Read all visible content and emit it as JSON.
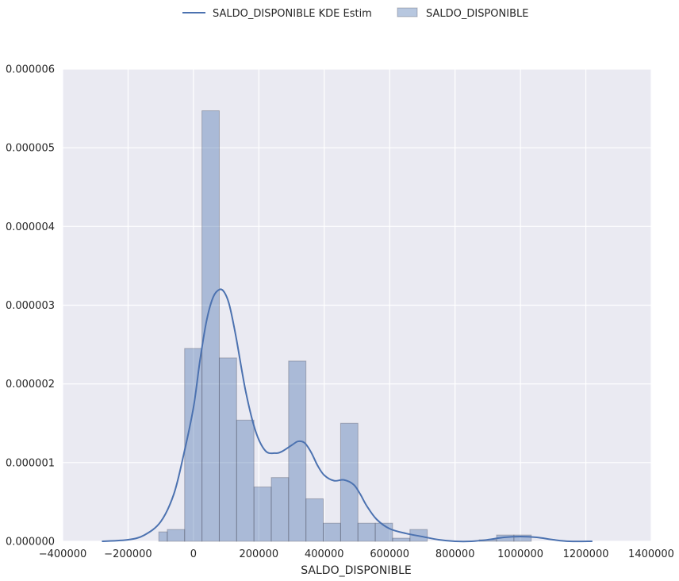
{
  "chart_data": {
    "type": "bar",
    "title": "",
    "xlabel": "SALDO_DISPONIBLE",
    "ylabel": "",
    "xlim": [
      -400000,
      1400000
    ],
    "ylim": [
      0,
      6e-06
    ],
    "grid": true,
    "legend_position": "top-center",
    "x_ticks": [
      "−400000",
      "−200000",
      "0",
      "200000",
      "400000",
      "600000",
      "800000",
      "1000000",
      "1200000",
      "1400000"
    ],
    "x_tick_values": [
      -400000,
      -200000,
      0,
      200000,
      400000,
      600000,
      800000,
      1000000,
      1200000,
      1400000
    ],
    "y_ticks": [
      "0.000000",
      "0.000001",
      "0.000002",
      "0.000003",
      "0.000004",
      "0.000005",
      "0.000006"
    ],
    "y_tick_values": [
      0,
      1e-06,
      2e-06,
      3e-06,
      4e-06,
      5e-06,
      6e-06
    ],
    "histogram": {
      "name": "SALDO_DISPONIBLE",
      "color": "#4c72b0",
      "bins": [
        {
          "x0": -106000,
          "x1": -80000,
          "value": 1.2e-07
        },
        {
          "x0": -80000,
          "x1": -27000,
          "value": 1.5e-07
        },
        {
          "x0": -27000,
          "x1": 26000,
          "value": 2.45e-06
        },
        {
          "x0": 26000,
          "x1": 79000,
          "value": 5.47e-06
        },
        {
          "x0": 79000,
          "x1": 132000,
          "value": 2.33e-06
        },
        {
          "x0": 132000,
          "x1": 185000,
          "value": 1.54e-06
        },
        {
          "x0": 185000,
          "x1": 238000,
          "value": 6.9e-07
        },
        {
          "x0": 238000,
          "x1": 291000,
          "value": 8.1e-07
        },
        {
          "x0": 291000,
          "x1": 344000,
          "value": 2.29e-06
        },
        {
          "x0": 344000,
          "x1": 397000,
          "value": 5.4e-07
        },
        {
          "x0": 397000,
          "x1": 450000,
          "value": 2.3e-07
        },
        {
          "x0": 450000,
          "x1": 503000,
          "value": 1.5e-06
        },
        {
          "x0": 503000,
          "x1": 556000,
          "value": 2.3e-07
        },
        {
          "x0": 556000,
          "x1": 609000,
          "value": 2.3e-07
        },
        {
          "x0": 609000,
          "x1": 662000,
          "value": 4e-08
        },
        {
          "x0": 662000,
          "x1": 715000,
          "value": 1.5e-07
        },
        {
          "x0": 715000,
          "x1": 768000,
          "value": 0.0
        },
        {
          "x0": 768000,
          "x1": 821000,
          "value": 0.0
        },
        {
          "x0": 821000,
          "x1": 874000,
          "value": 0.0
        },
        {
          "x0": 874000,
          "x1": 927000,
          "value": 2e-08
        },
        {
          "x0": 927000,
          "x1": 980000,
          "value": 8e-08
        },
        {
          "x0": 980000,
          "x1": 1033000,
          "value": 8e-08
        }
      ]
    },
    "kde": {
      "name": "SALDO_DISPONIBLE KDE Estim",
      "color": "#4c72b0",
      "x": [
        -280000,
        -200000,
        -150000,
        -100000,
        -60000,
        -30000,
        0,
        20000,
        40000,
        60000,
        80000,
        95000,
        110000,
        130000,
        160000,
        190000,
        220000,
        250000,
        270000,
        300000,
        320000,
        340000,
        360000,
        380000,
        400000,
        430000,
        460000,
        490000,
        510000,
        530000,
        560000,
        600000,
        650000,
        700000,
        750000,
        800000,
        850000,
        900000,
        950000,
        1000000,
        1050000,
        1100000,
        1150000,
        1220000
      ],
      "y": [
        0.0,
        2e-08,
        8e-08,
        2.5e-07,
        6e-07,
        1.1e-06,
        1.7e-06,
        2.3e-06,
        2.8e-06,
        3.1e-06,
        3.2e-06,
        3.16e-06,
        3e-06,
        2.6e-06,
        1.9e-06,
        1.4e-06,
        1.15e-06,
        1.12e-06,
        1.14e-06,
        1.22e-06,
        1.27e-06,
        1.25e-06,
        1.13e-06,
        9.6e-07,
        8.4e-07,
        7.7e-07,
        7.8e-07,
        7.2e-07,
        6e-07,
        4.5e-07,
        2.8e-07,
        1.6e-07,
        1e-07,
        6e-08,
        2e-08,
        0.0,
        0.0,
        2e-08,
        5e-08,
        6e-08,
        5e-08,
        2e-08,
        0.0,
        0.0
      ]
    }
  }
}
